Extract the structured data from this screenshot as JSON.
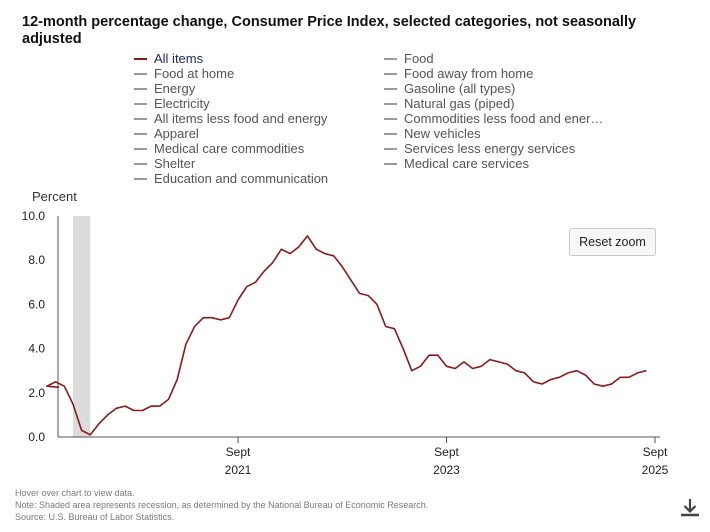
{
  "chart_data": {
    "type": "line",
    "title": "12-month percentage change, Consumer Price Index, selected categories, not seasonally adjusted",
    "ylabel": "Percent",
    "ylim": [
      0,
      10
    ],
    "yticks": [
      "0.0",
      "2.0",
      "4.0",
      "6.0",
      "8.0",
      "10.0"
    ],
    "xticks": [
      {
        "month": "Sept",
        "year": "2021"
      },
      {
        "month": "Sept",
        "year": "2023"
      },
      {
        "month": "Sept",
        "year": "2025"
      }
    ],
    "recession": {
      "start": "2020-02",
      "end": "2020-04"
    },
    "series": [
      {
        "name": "All items",
        "color": "#8b1a1a",
        "start": "2019-11",
        "values": [
          2.3,
          2.5,
          2.3,
          1.5,
          0.3,
          0.1,
          0.6,
          1.0,
          1.3,
          1.4,
          1.2,
          1.2,
          1.4,
          1.4,
          1.7,
          2.6,
          4.2,
          5.0,
          5.4,
          5.4,
          5.3,
          5.4,
          6.2,
          6.8,
          7.0,
          7.5,
          7.9,
          8.5,
          8.3,
          8.6,
          9.1,
          8.5,
          8.3,
          8.2,
          7.7,
          7.1,
          6.5,
          6.4,
          6.0,
          5.0,
          4.9,
          4.0,
          3.0,
          3.2,
          3.7,
          3.7,
          3.2,
          3.1,
          3.4,
          3.1,
          3.2,
          3.5,
          3.4,
          3.3,
          3.0,
          2.9,
          2.5,
          2.4,
          2.6,
          2.7,
          2.9,
          3.0,
          2.8,
          2.4,
          2.3,
          2.4,
          2.7,
          2.7,
          2.9,
          3.0
        ]
      }
    ]
  },
  "legend": {
    "left": [
      "All items",
      "Food at home",
      "Energy",
      "Electricity",
      "All items less food and energy",
      "Apparel",
      "Medical care commodities",
      "Shelter",
      "Education and communication"
    ],
    "right": [
      "Food",
      "Food away from home",
      "Gasoline (all types)",
      "Natural gas (piped)",
      "Commodities less food and ener…",
      "New vehicles",
      "Services less energy services",
      "Medical care services"
    ]
  },
  "reset_label": "Reset zoom",
  "footnotes": [
    "Hover over chart to view data.",
    "Note: Shaded area represents recession, as determined by the National Bureau of Economic Research.",
    "Source: U.S. Bureau of Labor Statistics."
  ],
  "colors": {
    "series": "#8b1a1a",
    "recession": "#dcdcdc",
    "inactive": "#9a9a9a",
    "active_text": "#1f2a6e"
  }
}
